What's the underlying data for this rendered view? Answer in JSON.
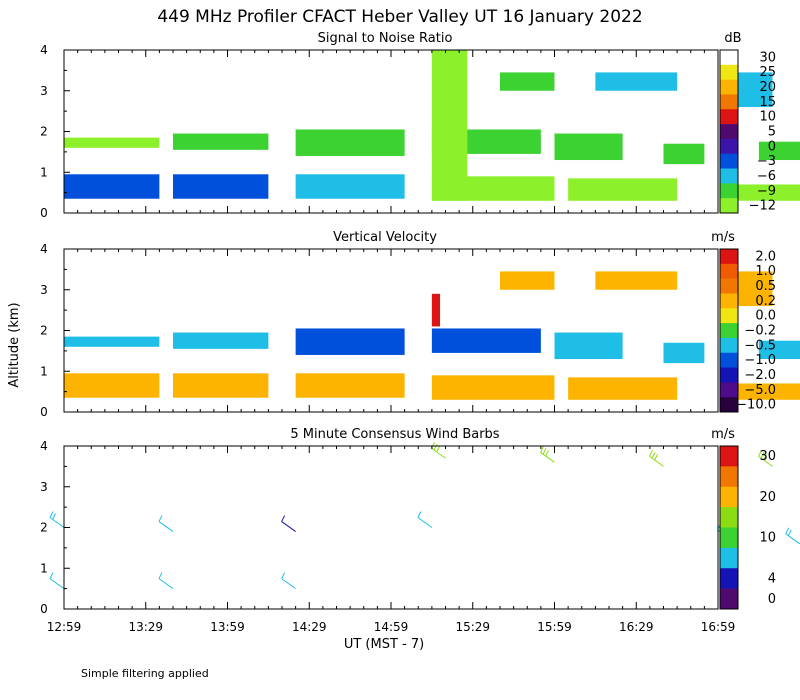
{
  "title": "449 MHz Profiler CFACT Heber Valley UT 16 January 2022",
  "footnote": "Simple filtering applied",
  "y_axis_label": "Altitude (km)",
  "x_axis_label": "UT  (MST - 7)",
  "colors": {
    "rainbow": [
      "#8cf02a",
      "#3cd232",
      "#1ebee6",
      "#0050dc",
      "#1414b4",
      "#500a8c",
      "#8c0a64",
      "#dc1414",
      "#f07800",
      "#fcb400",
      "#f0e614",
      "#ffffff"
    ]
  },
  "chart_data": [
    {
      "type": "heatmap",
      "title": "Signal to Noise Ratio",
      "unit": "dB",
      "ylim": [
        0,
        4
      ],
      "y_ticks": [
        "0",
        "1",
        "2",
        "3",
        "4"
      ],
      "colorbar": {
        "labels": [
          "30",
          "25",
          "20",
          "15",
          "10",
          "5",
          "0",
          "−3",
          "−6",
          "−9",
          "−12"
        ],
        "colors": [
          "#ffffff",
          "#f0e614",
          "#fcb400",
          "#f07800",
          "#dc1414",
          "#500a6e",
          "#3c14aa",
          "#0050dc",
          "#1ebee6",
          "#3cd232",
          "#8cf02a"
        ]
      },
      "regions": [
        {
          "t0": 0,
          "t1": 35,
          "z0": 0.35,
          "z1": 0.95,
          "v": "−3"
        },
        {
          "t0": 40,
          "t1": 75,
          "z0": 0.35,
          "z1": 0.95,
          "v": "−3"
        },
        {
          "t0": 85,
          "t1": 125,
          "z0": 0.35,
          "z1": 0.95,
          "v": "−6"
        },
        {
          "t0": 0,
          "t1": 35,
          "z0": 1.6,
          "z1": 1.85,
          "v": "−12"
        },
        {
          "t0": 40,
          "t1": 75,
          "z0": 1.55,
          "z1": 1.95,
          "v": "−9"
        },
        {
          "t0": 85,
          "t1": 125,
          "z0": 1.4,
          "z1": 2.05,
          "v": "−9"
        },
        {
          "t0": 135,
          "t1": 175,
          "z0": 1.45,
          "z1": 2.05,
          "v": "−9"
        },
        {
          "t0": 180,
          "t1": 205,
          "z0": 1.3,
          "z1": 1.95,
          "v": "−9"
        },
        {
          "t0": 220,
          "t1": 235,
          "z0": 1.2,
          "z1": 1.7,
          "v": "−9"
        },
        {
          "t0": 255,
          "t1": 280,
          "z0": 1.3,
          "z1": 1.75,
          "v": "−9"
        },
        {
          "t0": 135,
          "t1": 148,
          "z0": 0.3,
          "z1": 4.0,
          "v": "−12"
        },
        {
          "t0": 160,
          "t1": 180,
          "z0": 3.0,
          "z1": 3.45,
          "v": "−9"
        },
        {
          "t0": 195,
          "t1": 225,
          "z0": 3.0,
          "z1": 3.45,
          "v": "−6"
        },
        {
          "t0": 245,
          "t1": 260,
          "z0": 2.6,
          "z1": 3.45,
          "v": "−6"
        },
        {
          "t0": 135,
          "t1": 180,
          "z0": 0.3,
          "z1": 0.9,
          "v": "−12"
        },
        {
          "t0": 185,
          "t1": 225,
          "z0": 0.3,
          "z1": 0.85,
          "v": "−12"
        },
        {
          "t0": 245,
          "t1": 280,
          "z0": 0.3,
          "z1": 0.7,
          "v": "−12"
        }
      ]
    },
    {
      "type": "heatmap",
      "title": "Vertical Velocity",
      "unit": "m/s",
      "ylim": [
        0,
        4
      ],
      "y_ticks": [
        "0",
        "1",
        "2",
        "3",
        "4"
      ],
      "colorbar": {
        "labels": [
          "2.0",
          "1.0",
          "0.5",
          "0.2",
          "0.0",
          "−0.2",
          "−0.5",
          "−1.0",
          "−2.0",
          "−5.0",
          "−10.0"
        ],
        "colors": [
          "#dc1414",
          "#f05a00",
          "#f07800",
          "#fcb400",
          "#f0e614",
          "#3cd232",
          "#1ebee6",
          "#0050dc",
          "#1414b4",
          "#500a8c",
          "#28003c"
        ]
      },
      "regions": [
        {
          "t0": 0,
          "t1": 35,
          "z0": 0.35,
          "z1": 0.95,
          "v": "0.2"
        },
        {
          "t0": 40,
          "t1": 75,
          "z0": 0.35,
          "z1": 0.95,
          "v": "0.2"
        },
        {
          "t0": 85,
          "t1": 125,
          "z0": 0.35,
          "z1": 0.95,
          "v": "0.2"
        },
        {
          "t0": 0,
          "t1": 35,
          "z0": 1.6,
          "z1": 1.85,
          "v": "−0.5"
        },
        {
          "t0": 40,
          "t1": 75,
          "z0": 1.55,
          "z1": 1.95,
          "v": "−0.5"
        },
        {
          "t0": 85,
          "t1": 125,
          "z0": 1.4,
          "z1": 2.05,
          "v": "−1.0"
        },
        {
          "t0": 135,
          "t1": 175,
          "z0": 1.45,
          "z1": 2.05,
          "v": "−1.0"
        },
        {
          "t0": 180,
          "t1": 205,
          "z0": 1.3,
          "z1": 1.95,
          "v": "−0.5"
        },
        {
          "t0": 220,
          "t1": 235,
          "z0": 1.2,
          "z1": 1.7,
          "v": "−0.5"
        },
        {
          "t0": 255,
          "t1": 280,
          "z0": 1.3,
          "z1": 1.75,
          "v": "−0.5"
        },
        {
          "t0": 135,
          "t1": 138,
          "z0": 2.1,
          "z1": 2.9,
          "v": "2.0"
        },
        {
          "t0": 160,
          "t1": 180,
          "z0": 3.0,
          "z1": 3.45,
          "v": "0.2"
        },
        {
          "t0": 195,
          "t1": 225,
          "z0": 3.0,
          "z1": 3.45,
          "v": "0.2"
        },
        {
          "t0": 245,
          "t1": 260,
          "z0": 2.6,
          "z1": 3.45,
          "v": "0.2"
        },
        {
          "t0": 135,
          "t1": 180,
          "z0": 0.3,
          "z1": 0.9,
          "v": "0.2"
        },
        {
          "t0": 185,
          "t1": 225,
          "z0": 0.3,
          "z1": 0.85,
          "v": "0.2"
        },
        {
          "t0": 245,
          "t1": 280,
          "z0": 0.3,
          "z1": 0.7,
          "v": "0.2"
        }
      ]
    },
    {
      "type": "barbs",
      "title": "5 Minute Consensus Wind Barbs",
      "unit": "m/s",
      "ylim": [
        0,
        4
      ],
      "y_ticks": [
        "0",
        "1",
        "2",
        "3",
        "4"
      ],
      "colorbar": {
        "labels": [
          "30",
          "20",
          "10",
          "4",
          "0"
        ],
        "colors": [
          "#dc1414",
          "#f07800",
          "#fcb400",
          "#8cdc14",
          "#3cd232",
          "#1ebee6",
          "#1414b4",
          "#500a6e"
        ],
        "label_steps": [
          0,
          2,
          4,
          6,
          7
        ]
      },
      "barbs": [
        {
          "t": 0,
          "z": 2.0,
          "s": 8
        },
        {
          "t": 40,
          "z": 1.9,
          "s": 5
        },
        {
          "t": 85,
          "z": 1.9,
          "s": 3
        },
        {
          "t": 135,
          "z": 2.0,
          "s": 6
        },
        {
          "t": 245,
          "z": 1.7,
          "s": 6
        },
        {
          "t": 270,
          "z": 1.6,
          "s": 8
        },
        {
          "t": 140,
          "z": 3.7,
          "s": 15
        },
        {
          "t": 180,
          "z": 3.6,
          "s": 16
        },
        {
          "t": 220,
          "z": 3.5,
          "s": 16
        },
        {
          "t": 260,
          "z": 3.5,
          "s": 15
        },
        {
          "t": 0,
          "z": 0.5,
          "s": 4
        },
        {
          "t": 40,
          "z": 0.5,
          "s": 4
        },
        {
          "t": 85,
          "z": 0.5,
          "s": 4
        }
      ]
    }
  ],
  "x_axis": {
    "tmin": 0,
    "tmax": 240,
    "tick_step": 5,
    "tick_labels": [
      {
        "t": 0,
        "label": "12:59"
      },
      {
        "t": 30,
        "label": "13:29"
      },
      {
        "t": 60,
        "label": "13:59"
      },
      {
        "t": 90,
        "label": "14:29"
      },
      {
        "t": 120,
        "label": "14:59"
      },
      {
        "t": 150,
        "label": "15:29"
      },
      {
        "t": 180,
        "label": "15:59"
      },
      {
        "t": 210,
        "label": "16:29"
      },
      {
        "t": 240,
        "label": "16:59"
      }
    ]
  }
}
